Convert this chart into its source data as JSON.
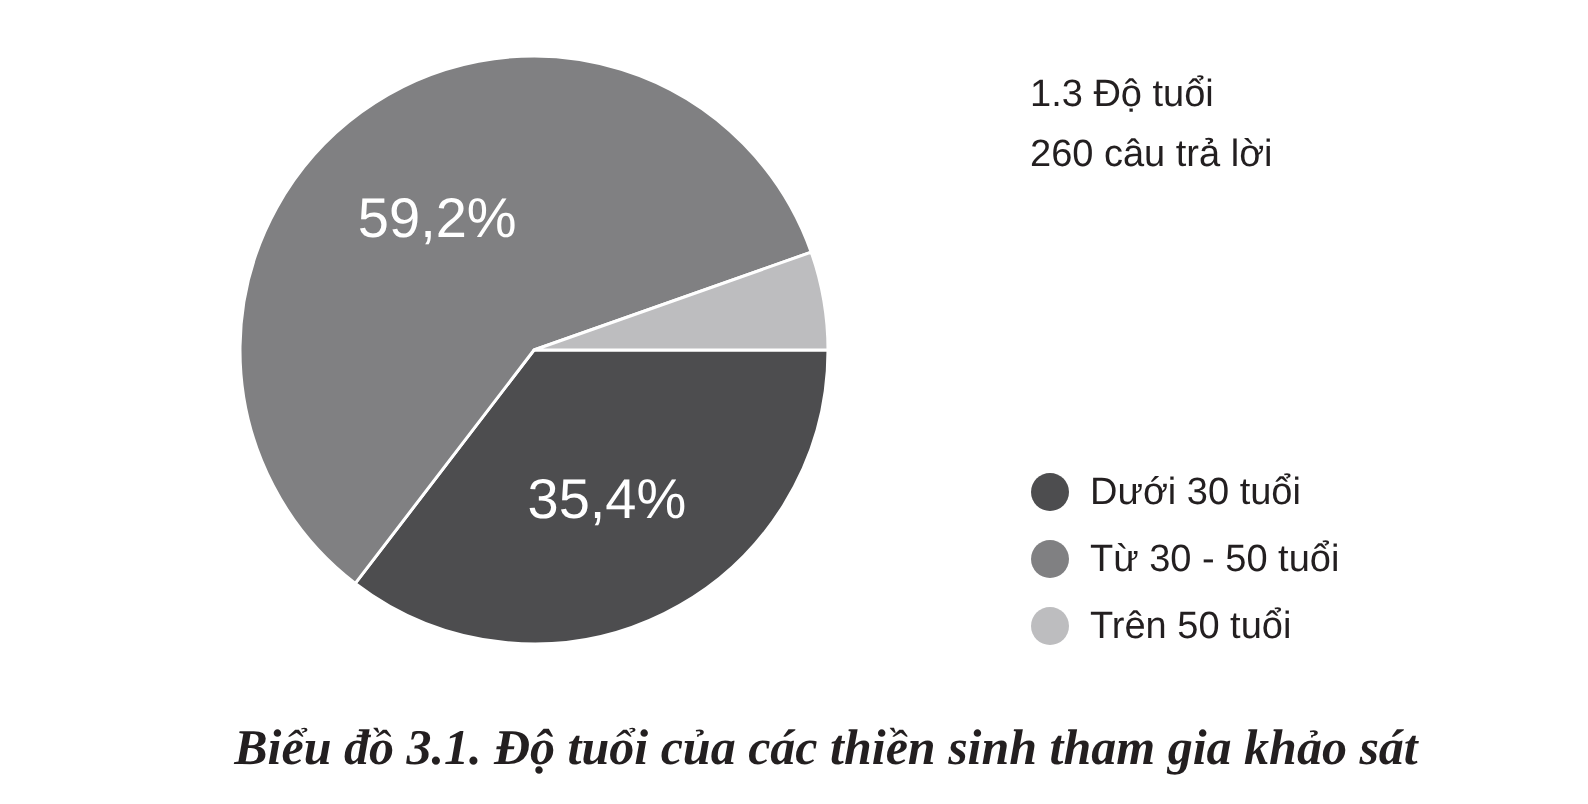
{
  "chart_data": {
    "type": "pie",
    "title": "1.3 Độ tuổi",
    "subtitle": "260 câu trả lời",
    "categories": [
      "Dưới 30 tuổi",
      "Từ 30 - 50 tuổi",
      "Trên 50 tuổi"
    ],
    "values": [
      35.4,
      59.2,
      5.4
    ],
    "colors": [
      "#4d4d4f",
      "#808082",
      "#bdbdbf"
    ],
    "value_labels": [
      "35,4%",
      "59,2%",
      null
    ],
    "legend": "right",
    "annotations": [
      "Biểu đồ 3.1. Độ tuổi của các thiền sinh tham gia khảo sát"
    ]
  }
}
